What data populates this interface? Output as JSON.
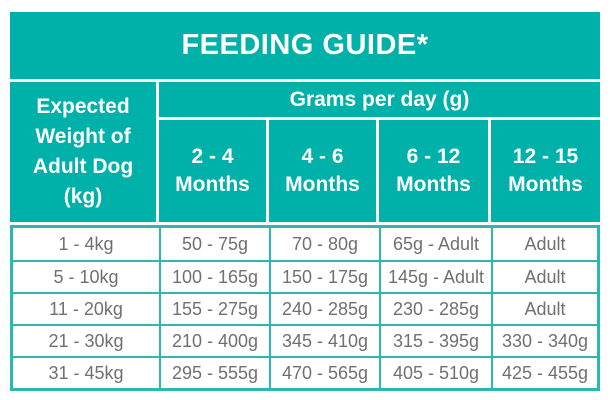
{
  "page": {
    "title": "FEEDING GUIDE*"
  },
  "colors": {
    "teal": "#00b1a9",
    "grid_border": "#2bb8b1",
    "data_text": "#6f7072",
    "header_text": "#ffffff"
  },
  "table": {
    "weight_header": "Expected Weight of Adult Dog (kg)",
    "group_header": "Grams per day (g)",
    "month_columns": [
      "2 - 4 Months",
      "4 - 6 Months",
      "6 - 12 Months",
      "12 - 15 Months"
    ],
    "rows": [
      {
        "weight": "1 - 4kg",
        "values": [
          "50 - 75g",
          "70 - 80g",
          "65g - Adult",
          "Adult"
        ]
      },
      {
        "weight": "5 - 10kg",
        "values": [
          "100 - 165g",
          "150 - 175g",
          "145g - Adult",
          "Adult"
        ]
      },
      {
        "weight": "11 - 20kg",
        "values": [
          "155 - 275g",
          "240 - 285g",
          "230 - 285g",
          "Adult"
        ]
      },
      {
        "weight": "21 - 30kg",
        "values": [
          "210 - 400g",
          "345 - 410g",
          "315 - 395g",
          "330 - 340g"
        ]
      },
      {
        "weight": "31 - 45kg",
        "values": [
          "295 - 555g",
          "470 - 565g",
          "405 - 510g",
          "425 - 455g"
        ]
      }
    ]
  }
}
